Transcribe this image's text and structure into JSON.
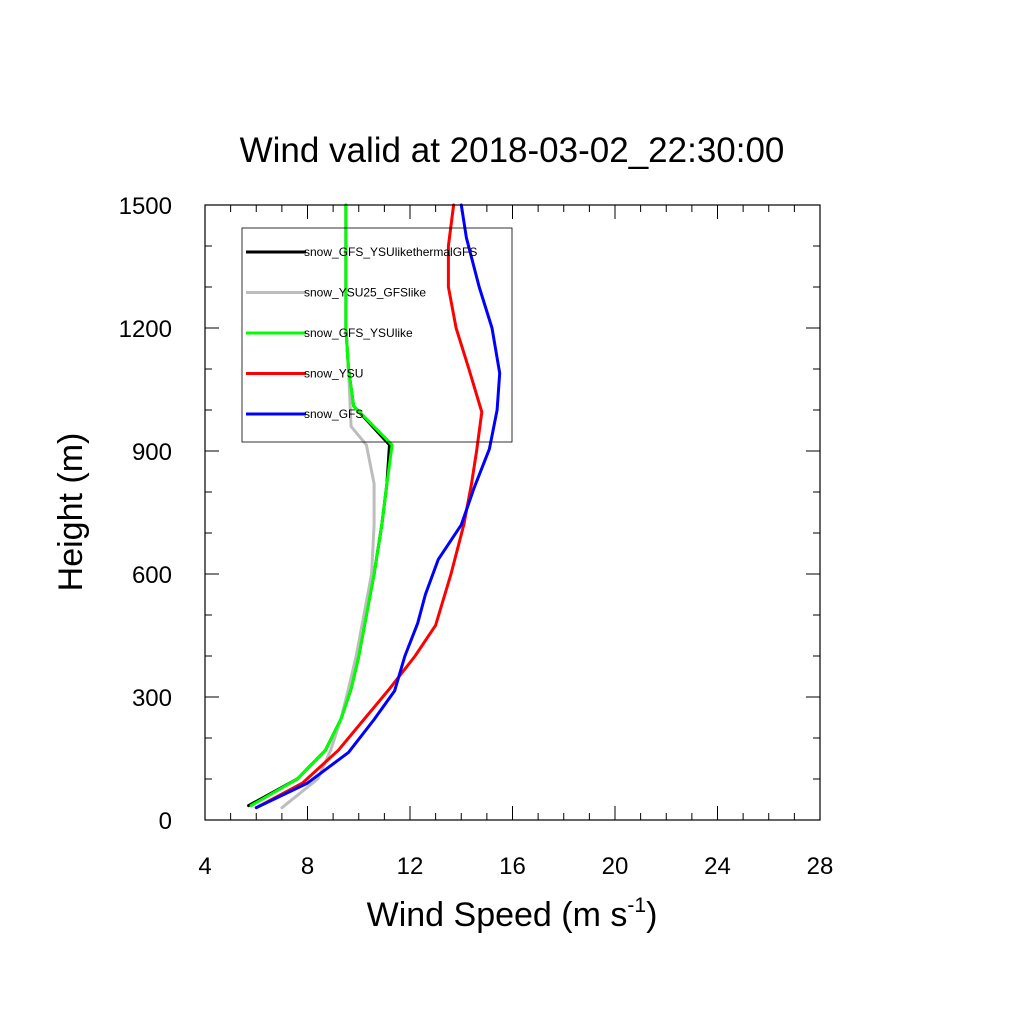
{
  "chart_data": {
    "type": "line",
    "title": "Wind valid at 2018-03-02_22:30:00",
    "xlabel": "Wind Speed (m s",
    "xlabel_sup": "-1",
    "xlabel_close": ")",
    "ylabel": "Height (m)",
    "xlim": [
      4,
      28
    ],
    "ylim": [
      0,
      1500
    ],
    "xticks": [
      4,
      8,
      12,
      16,
      20,
      24,
      28
    ],
    "yticks": [
      0,
      300,
      600,
      900,
      1200,
      1500
    ],
    "grid": false,
    "legend_position": "top-left",
    "series": [
      {
        "name": "snow_GFS_YSUlikethermalGFS",
        "color": "#000000",
        "x": [
          5.7,
          7.6,
          8.7,
          9.3,
          9.7,
          10.0,
          10.3,
          10.6,
          10.9,
          11.1,
          11.2,
          9.8,
          9.6,
          9.5,
          9.5,
          9.5,
          9.5
        ],
        "y": [
          35,
          100,
          170,
          245,
          320,
          400,
          500,
          600,
          720,
          820,
          915,
          1010,
          1100,
          1200,
          1300,
          1400,
          1500
        ]
      },
      {
        "name": "snow_YSU25_GFSlike",
        "color": "#bdbdbd",
        "x": [
          7.0,
          8.4,
          8.9,
          9.3,
          9.6,
          9.9,
          10.2,
          10.5,
          10.6,
          10.6,
          10.3,
          9.7,
          9.6,
          9.5,
          9.5,
          9.5,
          9.5
        ],
        "y": [
          30,
          100,
          170,
          245,
          320,
          400,
          500,
          600,
          720,
          820,
          915,
          960,
          1100,
          1200,
          1300,
          1400,
          1500
        ]
      },
      {
        "name": "snow_GFS_YSUlike",
        "color": "#00ff00",
        "x": [
          5.8,
          7.6,
          8.7,
          9.3,
          9.7,
          10.0,
          10.3,
          10.6,
          10.9,
          11.1,
          11.3,
          9.8,
          9.6,
          9.5,
          9.5,
          9.5,
          9.5
        ],
        "y": [
          35,
          100,
          170,
          245,
          320,
          400,
          500,
          600,
          720,
          820,
          915,
          1010,
          1100,
          1200,
          1300,
          1400,
          1500
        ]
      },
      {
        "name": "snow_YSU",
        "color": "#ff0000",
        "x": [
          6.0,
          7.8,
          9.2,
          10.2,
          11.2,
          12.2,
          13.0,
          13.6,
          14.1,
          14.4,
          14.6,
          14.8,
          14.3,
          13.8,
          13.5,
          13.5,
          13.7
        ],
        "y": [
          30,
          90,
          170,
          245,
          320,
          400,
          475,
          600,
          720,
          820,
          900,
          995,
          1100,
          1200,
          1300,
          1400,
          1500
        ]
      },
      {
        "name": "snow_GFS",
        "color": "#0000ff",
        "x": [
          6.0,
          8.0,
          9.6,
          10.6,
          11.4,
          11.8,
          12.3,
          12.6,
          13.1,
          14.0,
          14.5,
          15.1,
          15.4,
          15.5,
          15.2,
          14.7,
          14.2,
          14.0
        ],
        "y": [
          30,
          90,
          165,
          245,
          315,
          400,
          480,
          550,
          635,
          720,
          810,
          905,
          1000,
          1090,
          1200,
          1300,
          1420,
          1500
        ]
      }
    ]
  }
}
